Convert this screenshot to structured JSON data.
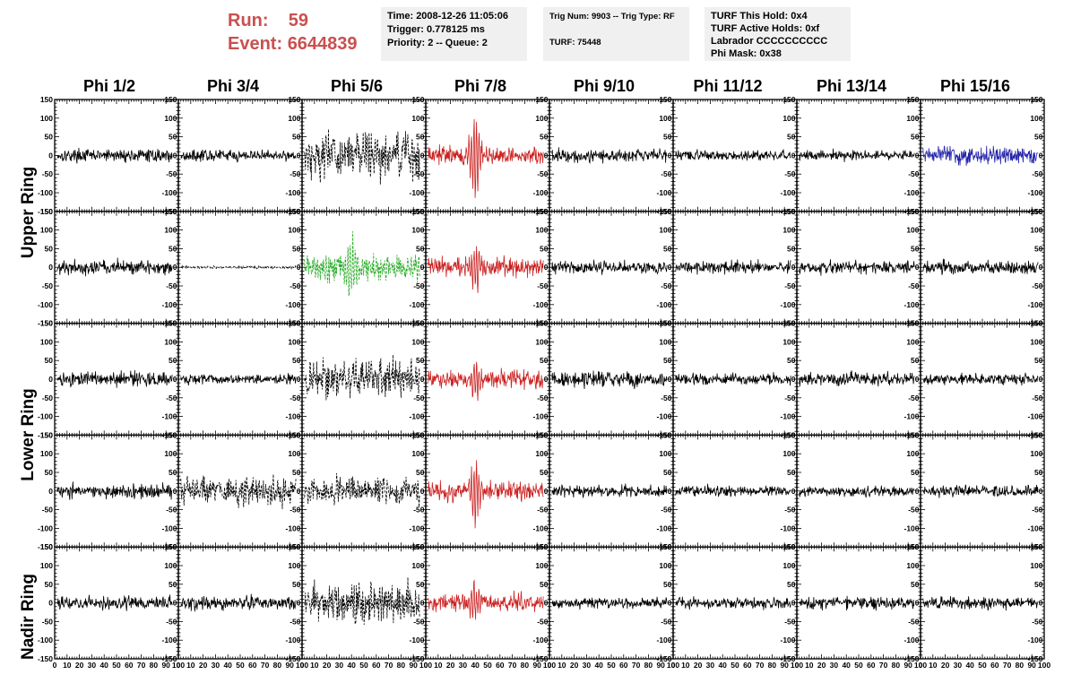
{
  "header": {
    "run_label": "Run:",
    "run_value": "59",
    "event_label": "Event:",
    "event_value": "6644839",
    "box1": [
      "Time: 2008-12-26 11:05:06",
      "Trigger: 0.778125 ms",
      "Priority: 2 -- Queue: 2"
    ],
    "box2": [
      "Trig Num: 9903 -- Trig Type: RF",
      "",
      "TURF: 75448"
    ],
    "box3": [
      "TURF This Hold: 0x4",
      "TURF Active Holds: 0xf",
      "Labrador CCCCCCCCCC",
      "Phi Mask: 0x38"
    ]
  },
  "phi_labels": [
    "Phi 1/2",
    "Phi 3/4",
    "Phi 5/6",
    "Phi 7/8",
    "Phi 9/10",
    "Phi 11/12",
    "Phi 13/14",
    "Phi 15/16"
  ],
  "ring_labels": [
    "Upper Ring",
    "Lower Ring",
    "Nadir Ring"
  ],
  "chart_data": {
    "type": "line",
    "title": "",
    "xlabel": "",
    "ylabel": "",
    "xlim": [
      0,
      100
    ],
    "ylim": [
      -150,
      150
    ],
    "x_ticks": [
      0,
      10,
      20,
      30,
      40,
      50,
      60,
      70,
      80,
      90,
      100
    ],
    "x_tick_labels": [
      "0",
      "10",
      "20",
      "30",
      "40",
      "50",
      "60",
      "70",
      "80",
      "90",
      "100"
    ],
    "y_ticks": [
      -150,
      -100,
      -50,
      0,
      50,
      100,
      150
    ],
    "y_tick_labels": [
      "-150",
      "-100",
      "-50",
      "0",
      "50",
      "100",
      "150"
    ],
    "grid": false,
    "rows": 5,
    "cols": 8,
    "colors": {
      "black": "#000000",
      "red": "#cc2222",
      "green": "#22aa22",
      "blue": "#2222aa"
    },
    "panels": [
      {
        "row": 0,
        "col": 0,
        "color": "black",
        "dashed": false,
        "amp": 10,
        "pulse": 0
      },
      {
        "row": 0,
        "col": 1,
        "color": "black",
        "dashed": false,
        "amp": 9,
        "pulse": 0
      },
      {
        "row": 0,
        "col": 2,
        "color": "black",
        "dashed": true,
        "amp": 38,
        "pulse": 0
      },
      {
        "row": 0,
        "col": 3,
        "color": "red",
        "dashed": false,
        "amp": 14,
        "pulse": 130
      },
      {
        "row": 0,
        "col": 4,
        "color": "black",
        "dashed": false,
        "amp": 11,
        "pulse": 0
      },
      {
        "row": 0,
        "col": 5,
        "color": "black",
        "dashed": false,
        "amp": 8,
        "pulse": 0
      },
      {
        "row": 0,
        "col": 6,
        "color": "black",
        "dashed": false,
        "amp": 8,
        "pulse": 0
      },
      {
        "row": 0,
        "col": 7,
        "color": "blue",
        "dashed": false,
        "amp": 14,
        "pulse": 0
      },
      {
        "row": 1,
        "col": 0,
        "color": "black",
        "dashed": false,
        "amp": 12,
        "pulse": 0
      },
      {
        "row": 1,
        "col": 1,
        "color": "black",
        "dashed": true,
        "amp": 2,
        "pulse": 0
      },
      {
        "row": 1,
        "col": 2,
        "color": "green",
        "dashed": true,
        "amp": 22,
        "pulse": 90
      },
      {
        "row": 1,
        "col": 3,
        "color": "red",
        "dashed": false,
        "amp": 16,
        "pulse": 80
      },
      {
        "row": 1,
        "col": 4,
        "color": "black",
        "dashed": false,
        "amp": 10,
        "pulse": 0
      },
      {
        "row": 1,
        "col": 5,
        "color": "black",
        "dashed": false,
        "amp": 10,
        "pulse": 0
      },
      {
        "row": 1,
        "col": 6,
        "color": "black",
        "dashed": false,
        "amp": 10,
        "pulse": 0
      },
      {
        "row": 1,
        "col": 7,
        "color": "black",
        "dashed": false,
        "amp": 11,
        "pulse": 0
      },
      {
        "row": 2,
        "col": 0,
        "color": "black",
        "dashed": false,
        "amp": 12,
        "pulse": 0
      },
      {
        "row": 2,
        "col": 1,
        "color": "black",
        "dashed": false,
        "amp": 9,
        "pulse": 0
      },
      {
        "row": 2,
        "col": 2,
        "color": "black",
        "dashed": true,
        "amp": 30,
        "pulse": 0
      },
      {
        "row": 2,
        "col": 3,
        "color": "red",
        "dashed": false,
        "amp": 14,
        "pulse": 60
      },
      {
        "row": 2,
        "col": 4,
        "color": "black",
        "dashed": false,
        "amp": 12,
        "pulse": 0
      },
      {
        "row": 2,
        "col": 5,
        "color": "black",
        "dashed": false,
        "amp": 9,
        "pulse": 0
      },
      {
        "row": 2,
        "col": 6,
        "color": "black",
        "dashed": false,
        "amp": 11,
        "pulse": 0
      },
      {
        "row": 2,
        "col": 7,
        "color": "black",
        "dashed": false,
        "amp": 9,
        "pulse": 0
      },
      {
        "row": 3,
        "col": 0,
        "color": "black",
        "dashed": false,
        "amp": 12,
        "pulse": 0
      },
      {
        "row": 3,
        "col": 1,
        "color": "black",
        "dashed": true,
        "amp": 22,
        "pulse": 0
      },
      {
        "row": 3,
        "col": 2,
        "color": "black",
        "dashed": true,
        "amp": 22,
        "pulse": 0
      },
      {
        "row": 3,
        "col": 3,
        "color": "red",
        "dashed": false,
        "amp": 16,
        "pulse": 100
      },
      {
        "row": 3,
        "col": 4,
        "color": "black",
        "dashed": false,
        "amp": 10,
        "pulse": 0
      },
      {
        "row": 3,
        "col": 5,
        "color": "black",
        "dashed": false,
        "amp": 9,
        "pulse": 0
      },
      {
        "row": 3,
        "col": 6,
        "color": "black",
        "dashed": false,
        "amp": 9,
        "pulse": 0
      },
      {
        "row": 3,
        "col": 7,
        "color": "black",
        "dashed": false,
        "amp": 9,
        "pulse": 0
      },
      {
        "row": 4,
        "col": 0,
        "color": "black",
        "dashed": false,
        "amp": 10,
        "pulse": 0
      },
      {
        "row": 4,
        "col": 1,
        "color": "black",
        "dashed": false,
        "amp": 11,
        "pulse": 0
      },
      {
        "row": 4,
        "col": 2,
        "color": "black",
        "dashed": true,
        "amp": 30,
        "pulse": 0
      },
      {
        "row": 4,
        "col": 3,
        "color": "red",
        "dashed": false,
        "amp": 16,
        "pulse": 60
      },
      {
        "row": 4,
        "col": 4,
        "color": "black",
        "dashed": false,
        "amp": 9,
        "pulse": 0
      },
      {
        "row": 4,
        "col": 5,
        "color": "black",
        "dashed": false,
        "amp": 9,
        "pulse": 0
      },
      {
        "row": 4,
        "col": 6,
        "color": "black",
        "dashed": false,
        "amp": 10,
        "pulse": 0
      },
      {
        "row": 4,
        "col": 7,
        "color": "black",
        "dashed": false,
        "amp": 10,
        "pulse": 0
      }
    ]
  }
}
